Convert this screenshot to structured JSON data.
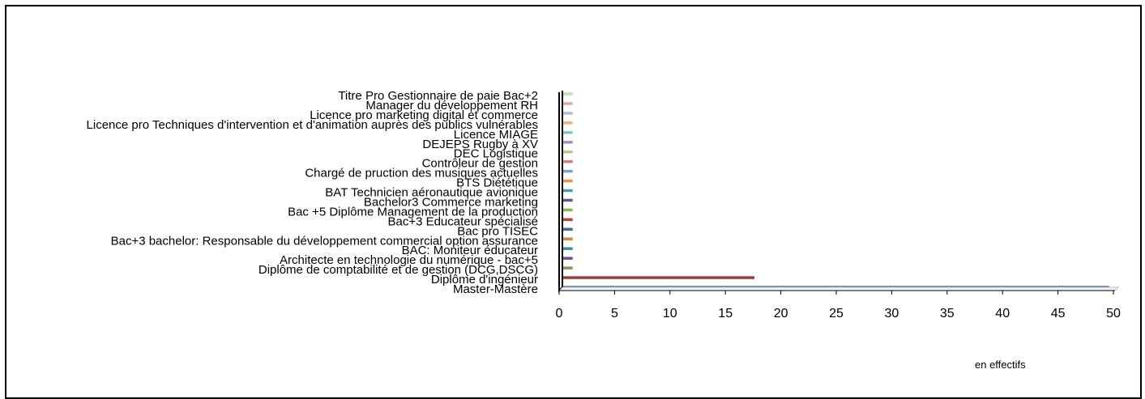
{
  "chart_data": {
    "type": "bar",
    "orientation": "horizontal",
    "categories": [
      "Master-Mastère",
      "Diplôme d'ingénieur",
      "Diplôme de comptabilité et de gestion (DCG,DSCG)",
      "Architecte en technologie du numérique - bac+5",
      "BAC: Moniteur éducateur",
      "Bac+3 bachelor: Responsable du développement commercial option assurance",
      "Bac pro TISEC",
      "Bac+3 Educateur spécialisé",
      "Bac +5 Diplôme Management de la production",
      "Bachelor3 Commerce marketing",
      "BAT Technicien aéronautique avionique",
      "BTS Diététique",
      "Chargé de pruction des musiques actuelles",
      "Contrôleur de gestion",
      "DEC Logistique",
      "DEJEPS Rugby à XV",
      "Licence MIAGE",
      "Licence pro Techniques d'intervention et d'animation auprès des publics vulnérables",
      "Licence pro marketing digital et commerce",
      "Manager du développement RH",
      "Titre Pro Gestionnaire de paie Bac+2"
    ],
    "values": [
      49.4,
      17.4,
      1,
      1,
      1,
      1,
      1,
      1,
      1,
      1,
      1,
      1,
      1,
      1,
      1,
      1,
      1,
      1,
      1,
      1,
      1
    ],
    "colors": [
      "#4a6fa5",
      "#9b3d3a",
      "#7f9a48",
      "#6a5288",
      "#3c8ea4",
      "#d9853b",
      "#3e63a8",
      "#b8403c",
      "#8fb24e",
      "#6b4e97",
      "#3fa1bc",
      "#ef9140",
      "#7e9dcf",
      "#cf7e7c",
      "#b3cb86",
      "#a38fc2",
      "#7fc2d6",
      "#f3b07c",
      "#a9bddf",
      "#e0a9a8",
      "#c9dba8"
    ],
    "xlim": [
      0,
      50
    ],
    "xticks": [
      "0",
      "5",
      "10",
      "15",
      "20",
      "25",
      "30",
      "35",
      "40",
      "45",
      "50"
    ],
    "grid": false,
    "legend": "none",
    "note": "en effectifs"
  }
}
